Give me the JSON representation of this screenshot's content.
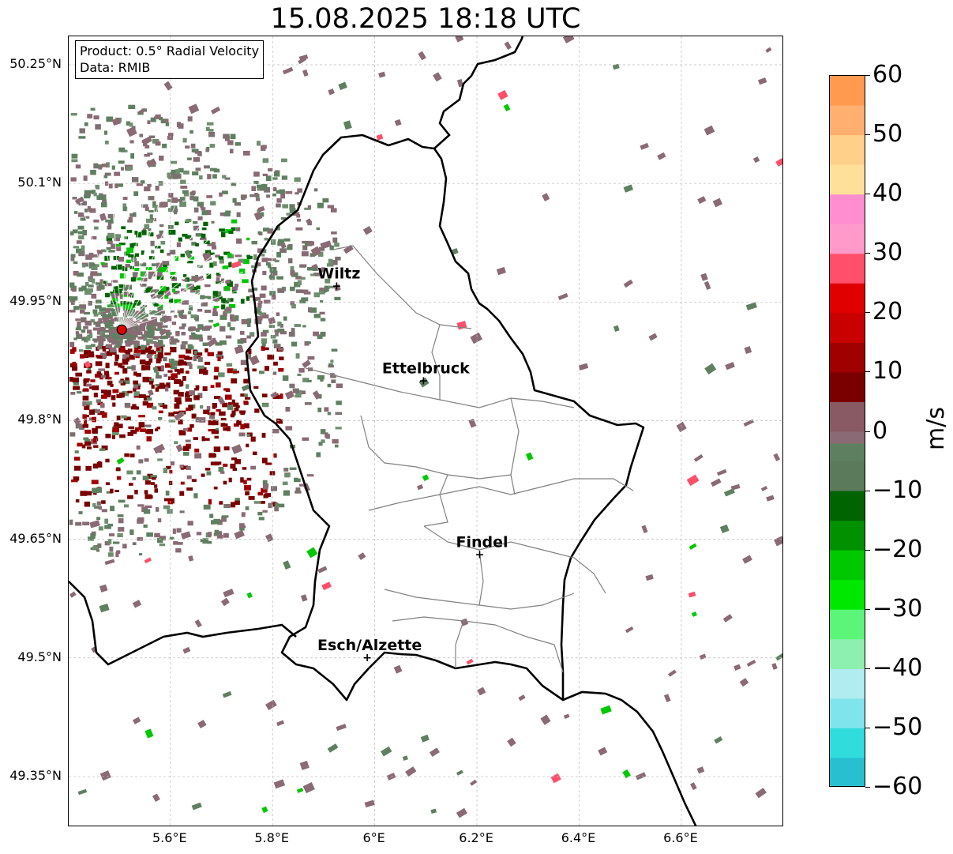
{
  "title": "15.08.2025 18:18 UTC",
  "info": {
    "product": "Product: 0.5° Radial Velocity",
    "data": "Data: RMIB"
  },
  "axes": {
    "lat_ticks": [
      "50.25°N",
      "50.1°N",
      "49.95°N",
      "49.8°N",
      "49.65°N",
      "49.5°N",
      "49.35°N"
    ],
    "lon_ticks": [
      "5.6°E",
      "5.8°E",
      "6°E",
      "6.2°E",
      "6.4°E",
      "6.6°E"
    ]
  },
  "cities": [
    {
      "name": "Wiltz",
      "lat": 49.97,
      "lon": 5.93
    },
    {
      "name": "Ettelbruck",
      "lat": 49.85,
      "lon": 6.1
    },
    {
      "name": "Findel",
      "lat": 49.63,
      "lon": 6.21
    },
    {
      "name": "Esch/Alzette",
      "lat": 49.5,
      "lon": 5.99
    }
  ],
  "radar_site": {
    "lat": 49.915,
    "lon": 5.505
  },
  "colorbar": {
    "unit": "m/s",
    "ticks": [
      "60",
      "50",
      "40",
      "30",
      "20",
      "10",
      "0",
      "−10",
      "−20",
      "−30",
      "−40",
      "−50",
      "−60"
    ],
    "min": -60,
    "max": 60,
    "colors": {
      "p60": "#ff9a4f",
      "p50": "#ffd08a",
      "p40": "#ff8ed0",
      "p30": "#ff4f6a",
      "p20": "#e00000",
      "p10": "#7a0000",
      "zero_warm": "#8a6a74",
      "zero_cool": "#5f8060",
      "m10": "#006400",
      "m20": "#00c800",
      "m30": "#5cf57a",
      "m35": "#8ef0b0",
      "m40": "#b0ecf0",
      "m50": "#30dcdc",
      "m60": "#1f7fc0"
    }
  }
}
